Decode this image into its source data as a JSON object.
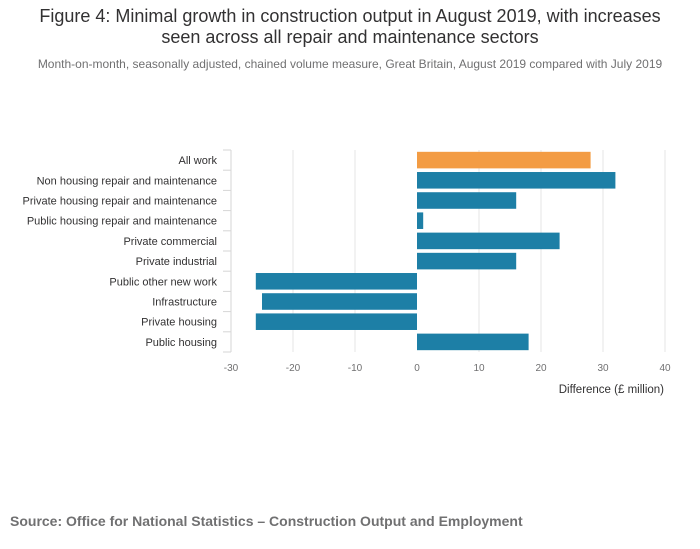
{
  "chart_data": {
    "type": "bar",
    "orientation": "horizontal",
    "title": "Figure 4: Minimal growth in construction output in August 2019, with increases seen across all repair and maintenance sectors",
    "subtitle": "Month-on-month, seasonally adjusted, chained volume measure, Great Britain, August 2019 compared with July 2019",
    "xlabel": "Difference (£ million)",
    "ylabel": "",
    "xlim": [
      -30,
      40
    ],
    "x_ticks": [
      "-30",
      "-20",
      "-10",
      "0",
      "10",
      "20",
      "30",
      "40"
    ],
    "categories": [
      "All work",
      "Non housing repair and maintenance",
      "Private housing repair and maintenance",
      "Public housing repair and maintenance",
      "Private commercial",
      "Private industrial",
      "Public other new work",
      "Infrastructure",
      "Private housing",
      "Public housing"
    ],
    "values": [
      28,
      32,
      16,
      1,
      23,
      16,
      -26,
      -25,
      -26,
      18
    ],
    "colors": [
      "#f39c44",
      "#1d7fa6",
      "#1d7fa6",
      "#1d7fa6",
      "#1d7fa6",
      "#1d7fa6",
      "#1d7fa6",
      "#1d7fa6",
      "#1d7fa6",
      "#1d7fa6"
    ],
    "grid": true,
    "legend": "none"
  },
  "source": "Source: Office for National Statistics – Construction Output and Employment"
}
